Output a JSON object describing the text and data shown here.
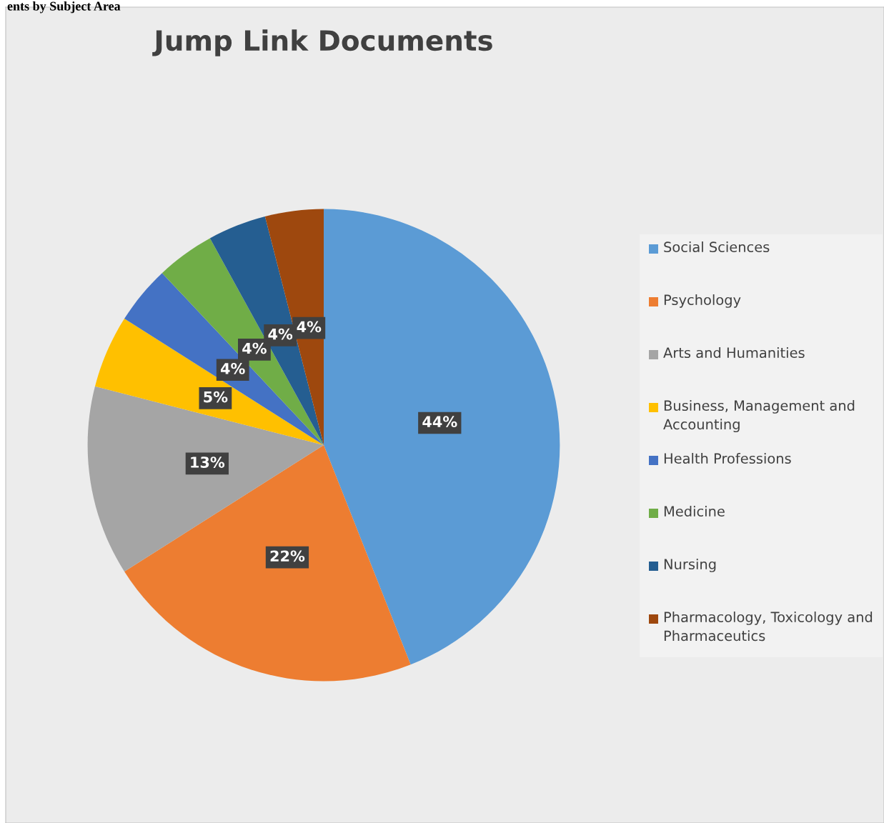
{
  "chart_data": {
    "type": "pie",
    "title": "Jump Link Documents",
    "categories": [
      "Social Sciences",
      "Psychology",
      "Arts and Humanities",
      "Business, Management and Accounting",
      "Health Professions",
      "Medicine",
      "Nursing",
      "Pharmacology, Toxicology and Pharmaceutics"
    ],
    "values": [
      44,
      22,
      13,
      5,
      4,
      4,
      4,
      4
    ],
    "colors": [
      "#5b9bd5",
      "#ed7d31",
      "#a5a5a5",
      "#ffc000",
      "#4472c4",
      "#70ad47",
      "#255e91",
      "#9e480e"
    ],
    "value_labels": [
      "44%",
      "22%",
      "13%",
      "5%",
      "4%",
      "4%",
      "4%",
      "4%"
    ],
    "legend": "right",
    "annotations": [
      "ents by Subject Area"
    ]
  }
}
